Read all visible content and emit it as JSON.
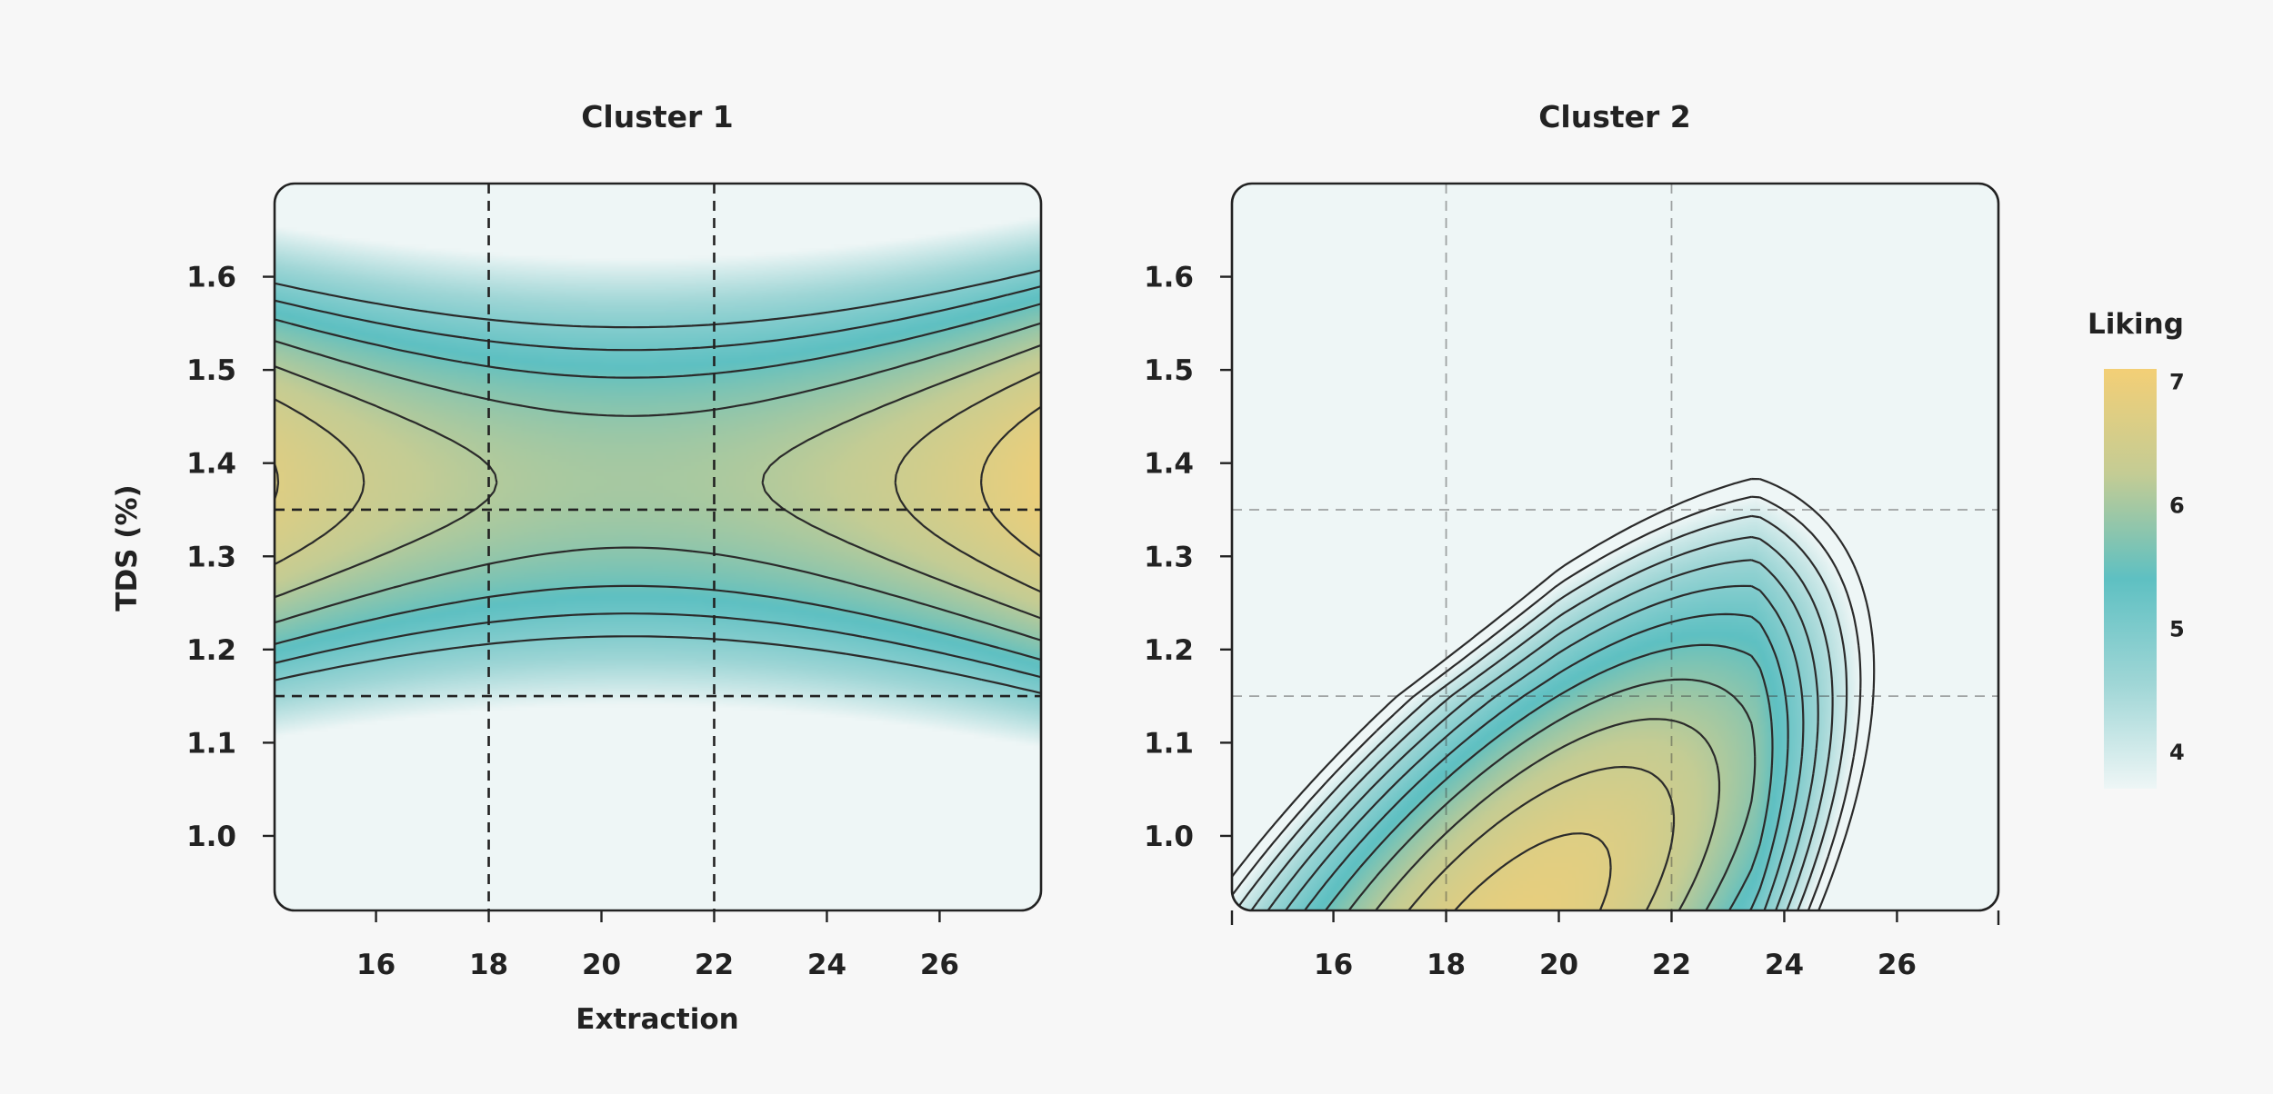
{
  "chart_data": {
    "type": "heatmap",
    "xlabel": "Extraction",
    "ylabel": "TDS (%)",
    "x_range": [
      14.2,
      27.8
    ],
    "y_range": [
      0.92,
      1.7
    ],
    "x_ticks": [
      16,
      18,
      20,
      22,
      24,
      26
    ],
    "y_ticks": [
      1.0,
      1.1,
      1.2,
      1.3,
      1.4,
      1.5,
      1.6
    ],
    "reference_lines": {
      "x": [
        18,
        22
      ],
      "y": [
        1.15,
        1.35
      ]
    },
    "legend": {
      "title": "Liking",
      "ticks": [
        7,
        6,
        5,
        4
      ],
      "range": [
        3.7,
        7.1
      ],
      "colors": [
        "#eef6f6",
        "#9fd6d6",
        "#5ec0c2",
        "#c4cc94",
        "#f3cf76"
      ]
    },
    "panels": [
      {
        "title": "Cluster 1",
        "show_x_ticks": true,
        "show_y_axis_label": true,
        "grid_style": "dark",
        "surface": {
          "type": "quadratic",
          "center": [
            20.5,
            1.38
          ],
          "c0": 6.0,
          "cxx": 0.018,
          "cyy": -40,
          "cxy": 0.0,
          "cx": 0.0,
          "cy": 0.0
        },
        "contour_levels": [
          4.9,
          5.2,
          5.5,
          5.8,
          6.1,
          6.4,
          6.7,
          7.0,
          7.3
        ]
      },
      {
        "title": "Cluster 2",
        "show_x_ticks": true,
        "show_y_axis_label": false,
        "grid_style": "light",
        "surface": {
          "type": "ridge",
          "peak": 6.9,
          "apex": [
            19.0,
            0.88
          ],
          "dir": [
            1.0,
            0.045
          ],
          "kx": 0.09,
          "ky": 22,
          "tail_start": 23.5,
          "tail_slope": 0.12
        },
        "contour_levels": [
          3.4,
          3.7,
          4.0,
          4.3,
          4.6,
          4.9,
          5.2,
          5.5,
          5.8,
          6.1,
          6.4,
          6.7
        ]
      }
    ]
  }
}
